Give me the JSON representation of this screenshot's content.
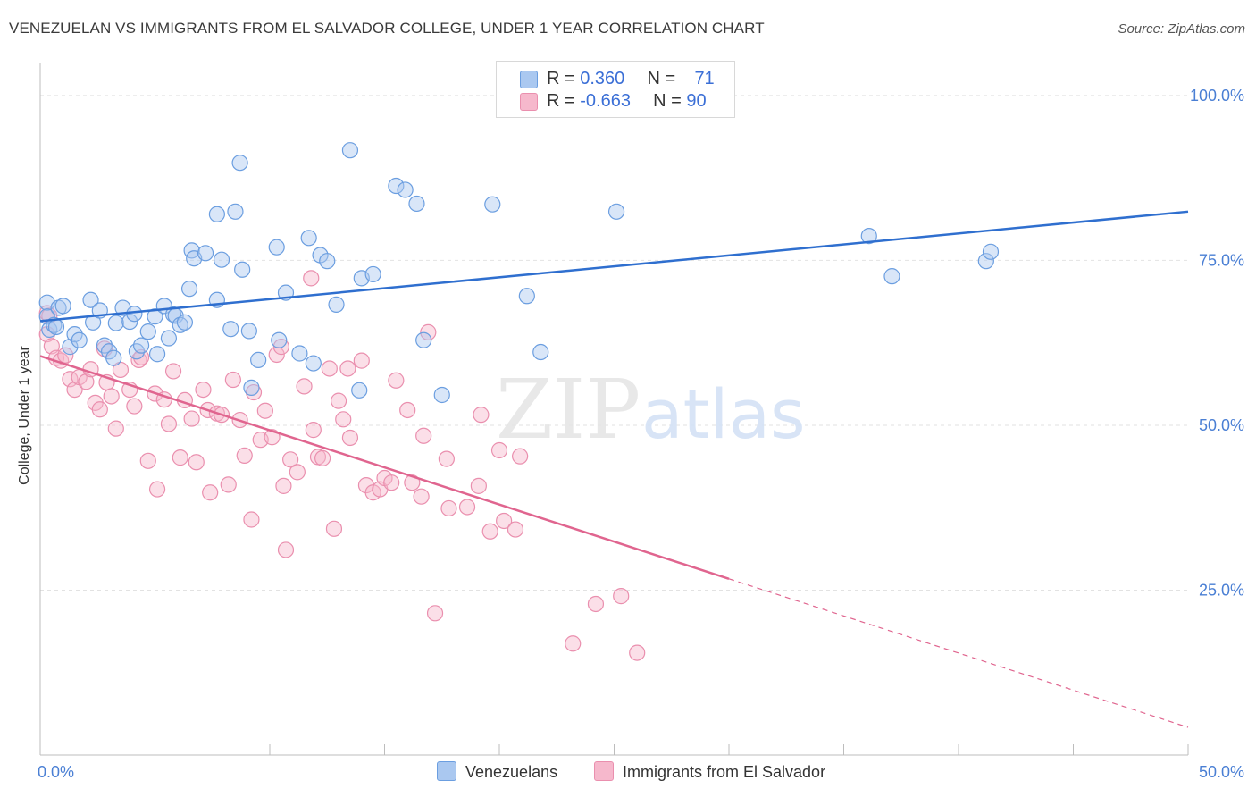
{
  "title": "VENEZUELAN VS IMMIGRANTS FROM EL SALVADOR COLLEGE, UNDER 1 YEAR CORRELATION CHART",
  "source": "Source: ZipAtlas.com",
  "watermark": {
    "zip": "ZIP",
    "atlas": "atlas"
  },
  "legend_top": {
    "rows": [
      {
        "r_label": "R = ",
        "r_value": "0.360",
        "n_label": "N = ",
        "n_value": "71"
      },
      {
        "r_label": "R = ",
        "r_value": "-0.663",
        "n_label": "N = ",
        "n_value": "90"
      }
    ]
  },
  "colors": {
    "blue_fill": "#aac8f0",
    "blue_stroke": "#6b9ee0",
    "blue_line": "#2f6fcf",
    "pink_fill": "#f6b8cc",
    "pink_stroke": "#ea8fae",
    "pink_line": "#e0658f",
    "axis_text": "#4a7fd4",
    "grid": "#e2e2e2"
  },
  "chart_data": {
    "type": "scatter",
    "title": "VENEZUELAN VS IMMIGRANTS FROM EL SALVADOR COLLEGE, UNDER 1 YEAR CORRELATION CHART",
    "xlabel": "",
    "ylabel": "College, Under 1 year",
    "xlim": [
      0,
      50
    ],
    "ylim": [
      0,
      105
    ],
    "x_tick_labels": [
      "0.0%",
      "50.0%"
    ],
    "y_ticks": [
      25,
      50,
      75,
      100
    ],
    "y_tick_labels": [
      "25.0%",
      "50.0%",
      "75.0%",
      "100.0%"
    ],
    "grid": true,
    "legend_position": "bottom",
    "series": [
      {
        "name": "Venezuelans",
        "color": "#aac8f0",
        "r": 0.36,
        "n": 71,
        "trend": {
          "x": [
            0,
            50
          ],
          "y": [
            65.8,
            82.4
          ],
          "dashed_from": null
        },
        "points": [
          [
            0.3,
            68.6
          ],
          [
            0.3,
            66.5
          ],
          [
            0.4,
            64.5
          ],
          [
            0.6,
            65.2
          ],
          [
            0.7,
            64.9
          ],
          [
            0.8,
            67.8
          ],
          [
            1.0,
            68.1
          ],
          [
            1.3,
            61.9
          ],
          [
            1.5,
            63.8
          ],
          [
            1.7,
            62.9
          ],
          [
            2.2,
            69.0
          ],
          [
            2.3,
            65.6
          ],
          [
            2.6,
            67.4
          ],
          [
            2.8,
            62.1
          ],
          [
            3.0,
            61.2
          ],
          [
            3.2,
            60.2
          ],
          [
            3.3,
            65.5
          ],
          [
            3.6,
            67.8
          ],
          [
            3.9,
            65.7
          ],
          [
            4.1,
            66.9
          ],
          [
            4.2,
            61.2
          ],
          [
            4.4,
            62.1
          ],
          [
            4.7,
            64.2
          ],
          [
            5.0,
            66.5
          ],
          [
            5.1,
            60.8
          ],
          [
            5.4,
            68.1
          ],
          [
            5.6,
            63.2
          ],
          [
            5.8,
            66.8
          ],
          [
            5.9,
            66.6
          ],
          [
            6.1,
            65.2
          ],
          [
            6.3,
            65.6
          ],
          [
            6.5,
            70.7
          ],
          [
            6.6,
            76.5
          ],
          [
            6.7,
            75.3
          ],
          [
            7.2,
            76.1
          ],
          [
            7.7,
            82.0
          ],
          [
            7.7,
            69.0
          ],
          [
            7.9,
            75.1
          ],
          [
            8.3,
            64.6
          ],
          [
            8.5,
            82.4
          ],
          [
            8.7,
            89.8
          ],
          [
            8.8,
            73.6
          ],
          [
            9.1,
            64.3
          ],
          [
            9.2,
            55.7
          ],
          [
            9.5,
            59.9
          ],
          [
            10.3,
            77.0
          ],
          [
            10.4,
            62.9
          ],
          [
            10.7,
            70.1
          ],
          [
            11.3,
            60.9
          ],
          [
            11.7,
            78.4
          ],
          [
            11.9,
            59.4
          ],
          [
            12.2,
            75.8
          ],
          [
            12.5,
            74.9
          ],
          [
            12.9,
            68.3
          ],
          [
            13.5,
            91.7
          ],
          [
            13.9,
            55.3
          ],
          [
            14.0,
            72.3
          ],
          [
            14.5,
            72.9
          ],
          [
            15.5,
            86.3
          ],
          [
            15.9,
            85.7
          ],
          [
            16.4,
            83.6
          ],
          [
            16.7,
            62.9
          ],
          [
            17.5,
            54.6
          ],
          [
            19.7,
            83.5
          ],
          [
            21.2,
            69.6
          ],
          [
            21.8,
            61.1
          ],
          [
            25.1,
            82.4
          ],
          [
            36.1,
            78.7
          ],
          [
            37.1,
            72.6
          ],
          [
            41.2,
            74.9
          ],
          [
            41.4,
            76.3
          ]
        ]
      },
      {
        "name": "Immigrants from El Salvador",
        "color": "#f6b8cc",
        "r": -0.663,
        "n": 90,
        "trend": {
          "x": [
            0,
            50
          ],
          "y": [
            60.5,
            4.2
          ],
          "dashed_from": 30
        },
        "points": [
          [
            0.3,
            67.0
          ],
          [
            0.3,
            63.8
          ],
          [
            0.4,
            66.6
          ],
          [
            0.5,
            62.0
          ],
          [
            0.7,
            60.2
          ],
          [
            0.9,
            59.8
          ],
          [
            1.1,
            60.6
          ],
          [
            1.3,
            57.0
          ],
          [
            1.5,
            55.4
          ],
          [
            1.7,
            57.3
          ],
          [
            2.0,
            56.6
          ],
          [
            2.2,
            58.5
          ],
          [
            2.4,
            53.4
          ],
          [
            2.6,
            52.4
          ],
          [
            2.8,
            61.6
          ],
          [
            2.9,
            56.5
          ],
          [
            3.1,
            54.4
          ],
          [
            3.3,
            49.5
          ],
          [
            3.5,
            58.4
          ],
          [
            3.9,
            55.4
          ],
          [
            4.1,
            52.9
          ],
          [
            4.3,
            59.9
          ],
          [
            4.4,
            60.3
          ],
          [
            4.7,
            44.6
          ],
          [
            5.0,
            54.8
          ],
          [
            5.1,
            40.3
          ],
          [
            5.4,
            53.9
          ],
          [
            5.6,
            50.2
          ],
          [
            5.8,
            58.2
          ],
          [
            6.1,
            45.1
          ],
          [
            6.3,
            53.8
          ],
          [
            6.6,
            51.0
          ],
          [
            6.8,
            44.4
          ],
          [
            7.1,
            55.4
          ],
          [
            7.3,
            52.3
          ],
          [
            7.4,
            39.8
          ],
          [
            7.7,
            51.8
          ],
          [
            7.9,
            51.6
          ],
          [
            8.2,
            41.0
          ],
          [
            8.4,
            56.9
          ],
          [
            8.7,
            50.8
          ],
          [
            8.9,
            45.4
          ],
          [
            9.2,
            35.7
          ],
          [
            9.3,
            55.0
          ],
          [
            9.6,
            47.8
          ],
          [
            9.8,
            52.2
          ],
          [
            10.1,
            48.2
          ],
          [
            10.3,
            60.7
          ],
          [
            10.5,
            61.9
          ],
          [
            10.6,
            40.8
          ],
          [
            10.7,
            31.1
          ],
          [
            10.9,
            44.8
          ],
          [
            11.2,
            42.9
          ],
          [
            11.5,
            55.9
          ],
          [
            11.8,
            72.3
          ],
          [
            11.9,
            49.3
          ],
          [
            12.1,
            45.2
          ],
          [
            12.3,
            45.0
          ],
          [
            12.6,
            58.6
          ],
          [
            12.8,
            34.3
          ],
          [
            13.0,
            53.7
          ],
          [
            13.2,
            50.9
          ],
          [
            13.4,
            58.6
          ],
          [
            13.5,
            48.1
          ],
          [
            14.0,
            59.8
          ],
          [
            14.2,
            40.9
          ],
          [
            14.5,
            39.8
          ],
          [
            14.8,
            40.3
          ],
          [
            15.0,
            42.0
          ],
          [
            15.3,
            41.3
          ],
          [
            15.5,
            56.8
          ],
          [
            16.0,
            52.3
          ],
          [
            16.2,
            41.3
          ],
          [
            16.6,
            39.2
          ],
          [
            16.7,
            48.4
          ],
          [
            16.9,
            64.1
          ],
          [
            17.2,
            21.5
          ],
          [
            17.7,
            44.9
          ],
          [
            17.8,
            37.4
          ],
          [
            18.6,
            37.6
          ],
          [
            19.1,
            40.8
          ],
          [
            19.2,
            51.6
          ],
          [
            19.6,
            33.9
          ],
          [
            20.0,
            46.2
          ],
          [
            20.2,
            35.5
          ],
          [
            20.7,
            34.2
          ],
          [
            20.9,
            45.3
          ],
          [
            23.2,
            16.9
          ],
          [
            24.2,
            22.9
          ],
          [
            25.3,
            24.1
          ],
          [
            26.0,
            15.5
          ]
        ]
      }
    ]
  },
  "legend_bottom": [
    {
      "label": "Venezuelans"
    },
    {
      "label": "Immigrants from El Salvador"
    }
  ],
  "axes": {
    "ylabel": "College, Under 1 year",
    "x_min_label": "0.0%",
    "x_max_label": "50.0%"
  }
}
